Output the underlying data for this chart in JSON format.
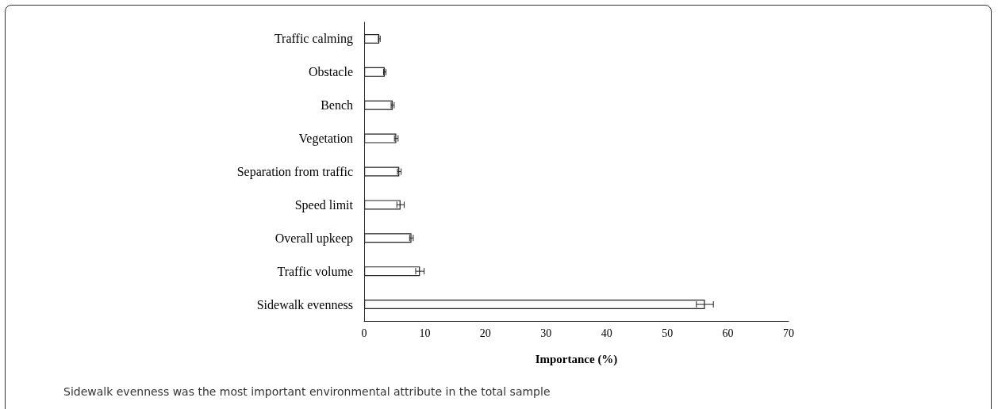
{
  "chart_data": {
    "type": "bar",
    "orientation": "horizontal",
    "xlabel": "Importance (%)",
    "categories": [
      "Traffic calming",
      "Obstacle",
      "Bench",
      "Vegetation",
      "Separation from traffic",
      "Speed limit",
      "Overall upkeep",
      "Traffic volume",
      "Sidewalk evenness"
    ],
    "values": [
      2.5,
      3.4,
      4.7,
      5.3,
      5.8,
      6.0,
      7.8,
      9.2,
      56.2
    ],
    "errors": [
      0.15,
      0.2,
      0.25,
      0.3,
      0.3,
      0.6,
      0.3,
      0.7,
      1.4
    ],
    "color": "#ffffff",
    "xlim": [
      0,
      70
    ],
    "xticks": [
      0,
      10,
      20,
      30,
      40,
      50,
      60,
      70
    ],
    "grid": false,
    "annotations": [
      "Sidewalk evenness was the most important environmental attribute in the total sample"
    ]
  }
}
